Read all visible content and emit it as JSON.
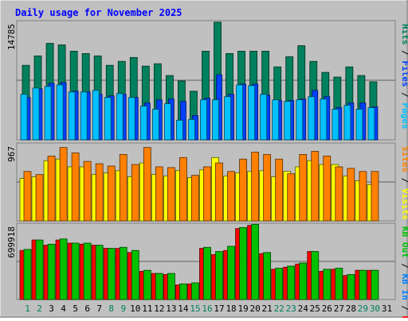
{
  "chart_data": [
    {
      "type": "bar",
      "title": "Daily usage for November 2025",
      "panel": "hits-files-pages",
      "y_tick_label": "14785",
      "ylim": [
        0,
        14785
      ],
      "legend": [
        {
          "label": "Pages",
          "color": "#00c0ff"
        },
        {
          "label": "Files",
          "color": "#0040ff"
        },
        {
          "label": "Hits",
          "color": "#00805c"
        }
      ],
      "categories": [
        "1",
        "2",
        "3",
        "4",
        "5",
        "6",
        "7",
        "8",
        "9",
        "10",
        "11",
        "12",
        "13",
        "14",
        "15",
        "16",
        "17",
        "18",
        "19",
        "20",
        "21",
        "22",
        "23",
        "24",
        "25",
        "26",
        "27",
        "28",
        "29",
        "30",
        "31"
      ],
      "series": [
        {
          "name": "Hits",
          "color": "#00805c",
          "values": [
            9500,
            10700,
            12300,
            12100,
            11300,
            11000,
            10700,
            9500,
            10000,
            10500,
            9400,
            9700,
            8200,
            7500,
            6200,
            11300,
            15000,
            11000,
            11300,
            11300,
            11300,
            9300,
            10600,
            12000,
            10000,
            8600,
            8000,
            9300,
            8200,
            7400,
            null
          ]
        },
        {
          "name": "Files",
          "color": "#0040ff",
          "values": [
            5400,
            6500,
            7200,
            7300,
            6200,
            6100,
            5800,
            5600,
            5800,
            5400,
            4700,
            5100,
            5200,
            4900,
            3100,
            5300,
            8300,
            5800,
            7100,
            7100,
            5700,
            5000,
            5000,
            5200,
            6300,
            5500,
            4100,
            4700,
            4700,
            4200,
            null
          ]
        },
        {
          "name": "Pages",
          "color": "#00c0ff",
          "values": [
            5800,
            6600,
            6800,
            7000,
            6100,
            6100,
            6300,
            5400,
            5900,
            5400,
            4300,
            3900,
            4600,
            2500,
            2600,
            5100,
            5100,
            5500,
            7000,
            6900,
            5800,
            5100,
            4900,
            5100,
            5500,
            5200,
            3900,
            4400,
            3900,
            4100,
            null
          ]
        }
      ]
    },
    {
      "type": "bar",
      "panel": "visits-sites",
      "y_tick_label": "967",
      "ylim": [
        0,
        967
      ],
      "legend": [
        {
          "label": "Visits",
          "color": "#ffff00"
        },
        {
          "label": "Sites",
          "color": "#ff8000"
        }
      ],
      "categories": [
        "1",
        "2",
        "3",
        "4",
        "5",
        "6",
        "7",
        "8",
        "9",
        "10",
        "11",
        "12",
        "13",
        "14",
        "15",
        "16",
        "17",
        "18",
        "19",
        "20",
        "21",
        "22",
        "23",
        "24",
        "25",
        "26",
        "27",
        "28",
        "29",
        "30",
        "31"
      ],
      "series": [
        {
          "name": "Visits",
          "color": "#ffff00",
          "values": [
            550,
            570,
            780,
            800,
            700,
            700,
            600,
            620,
            650,
            570,
            750,
            600,
            580,
            650,
            560,
            660,
            820,
            580,
            620,
            640,
            650,
            570,
            640,
            700,
            780,
            730,
            730,
            580,
            520,
            470,
            null
          ]
        },
        {
          "name": "Sites",
          "color": "#ff8000",
          "values": [
            640,
            600,
            840,
            950,
            880,
            770,
            740,
            710,
            860,
            730,
            950,
            700,
            690,
            820,
            590,
            700,
            750,
            640,
            800,
            890,
            860,
            800,
            610,
            860,
            900,
            840,
            700,
            680,
            640,
            640,
            null
          ]
        }
      ]
    },
    {
      "type": "bar",
      "panel": "kbytes",
      "y_tick_label": "699918",
      "ylim": [
        0,
        699918
      ],
      "legend": [
        {
          "label": "KB F",
          "color": "#ff0000"
        },
        {
          "label": "KB In",
          "color": "#0080ff"
        },
        {
          "label": "KB Out",
          "color": "#00c000"
        }
      ],
      "categories": [
        "1",
        "2",
        "3",
        "4",
        "5",
        "6",
        "7",
        "8",
        "9",
        "10",
        "11",
        "12",
        "13",
        "14",
        "15",
        "16",
        "17",
        "18",
        "19",
        "20",
        "21",
        "22",
        "23",
        "24",
        "25",
        "26",
        "27",
        "28",
        "29",
        "30",
        "31"
      ],
      "series": [
        {
          "name": "KB F",
          "color": "#ff0000",
          "values": [
            470000,
            570000,
            520000,
            570000,
            540000,
            530000,
            520000,
            490000,
            490000,
            450000,
            270000,
            250000,
            240000,
            140000,
            150000,
            490000,
            430000,
            470000,
            680000,
            710000,
            440000,
            290000,
            310000,
            340000,
            460000,
            270000,
            290000,
            230000,
            280000,
            280000,
            null
          ]
        },
        {
          "name": "KB Out",
          "color": "#00c000",
          "values": [
            480000,
            570000,
            530000,
            580000,
            540000,
            540000,
            520000,
            490000,
            500000,
            470000,
            280000,
            250000,
            250000,
            150000,
            160000,
            500000,
            460000,
            510000,
            690000,
            720000,
            450000,
            300000,
            320000,
            350000,
            460000,
            290000,
            300000,
            240000,
            280000,
            280000,
            null
          ]
        }
      ]
    }
  ],
  "axis": {
    "x_labels": [
      "1",
      "2",
      "3",
      "4",
      "5",
      "6",
      "7",
      "8",
      "9",
      "10",
      "11",
      "12",
      "13",
      "14",
      "15",
      "16",
      "17",
      "18",
      "19",
      "20",
      "21",
      "22",
      "23",
      "24",
      "25",
      "26",
      "27",
      "28",
      "29",
      "30",
      "31"
    ],
    "weekend_days": [
      1,
      2,
      8,
      9,
      15,
      16,
      22,
      23,
      29,
      30
    ]
  },
  "colors": {
    "background": "#c0c0c0",
    "plot_area": "#c0c0c0",
    "title": "#0000ff",
    "weekday_label": "#000000",
    "weekend_label": "#00805c",
    "grid": "#000000"
  }
}
